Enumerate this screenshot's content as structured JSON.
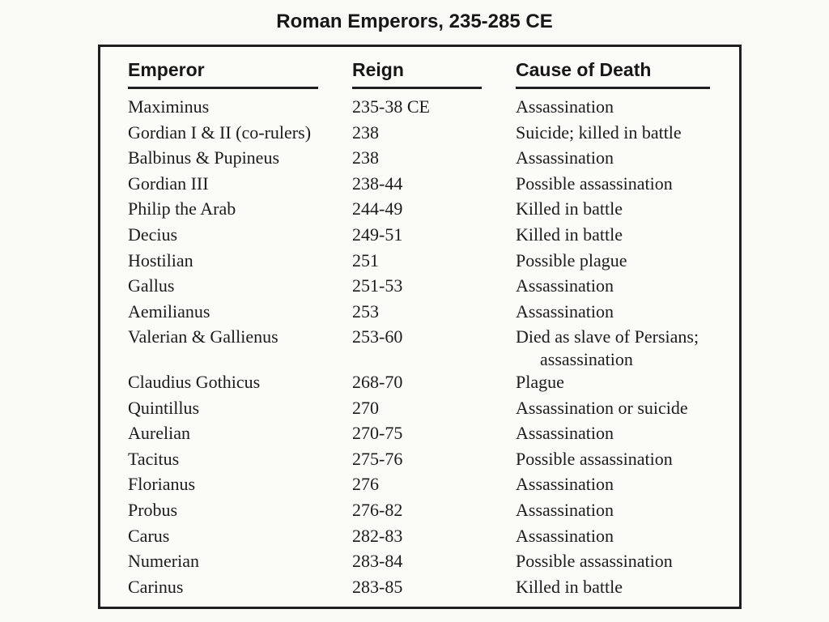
{
  "page": {
    "title": "Roman Emperors, 235-285 CE"
  },
  "table": {
    "headers": {
      "emperor": "Emperor",
      "reign": "Reign",
      "cause": "Cause of Death"
    },
    "rows": [
      {
        "emperor": "Maximinus",
        "reign": "235-38 CE",
        "cause": "Assassination"
      },
      {
        "emperor": "Gordian I & II (co-rulers)",
        "reign": "238",
        "cause": "Suicide; killed in battle"
      },
      {
        "emperor": "Balbinus & Pupineus",
        "reign": "238",
        "cause": "Assassination"
      },
      {
        "emperor": "Gordian III",
        "reign": "238-44",
        "cause": "Possible assassination"
      },
      {
        "emperor": "Philip the Arab",
        "reign": "244-49",
        "cause": "Killed in battle"
      },
      {
        "emperor": "Decius",
        "reign": "249-51",
        "cause": "Killed in battle"
      },
      {
        "emperor": "Hostilian",
        "reign": "251",
        "cause": "Possible plague"
      },
      {
        "emperor": "Gallus",
        "reign": "251-53",
        "cause": "Assassination"
      },
      {
        "emperor": "Aemilianus",
        "reign": "253",
        "cause": "Assassination"
      },
      {
        "emperor": "Valerian & Gallienus",
        "reign": "253-60",
        "cause": "Died as slave of Persians;",
        "cause_line2": "assassination"
      },
      {
        "emperor": "Claudius Gothicus",
        "reign": "268-70",
        "cause": "Plague"
      },
      {
        "emperor": "Quintillus",
        "reign": "270",
        "cause": "Assassination or suicide"
      },
      {
        "emperor": "Aurelian",
        "reign": "270-75",
        "cause": "Assassination"
      },
      {
        "emperor": "Tacitus",
        "reign": "275-76",
        "cause": "Possible assassination"
      },
      {
        "emperor": "Florianus",
        "reign": "276",
        "cause": "Assassination"
      },
      {
        "emperor": "Probus",
        "reign": "276-82",
        "cause": "Assassination"
      },
      {
        "emperor": "Carus",
        "reign": "282-83",
        "cause": "Assassination"
      },
      {
        "emperor": "Numerian",
        "reign": "283-84",
        "cause": "Possible assassination"
      },
      {
        "emperor": "Carinus",
        "reign": "283-85",
        "cause": "Killed in battle"
      }
    ]
  },
  "colors": {
    "text": "#1c1c1c",
    "border": "#1f1f1f",
    "page_background": "#f9f9f6",
    "table_background": "#fbfbf8"
  }
}
